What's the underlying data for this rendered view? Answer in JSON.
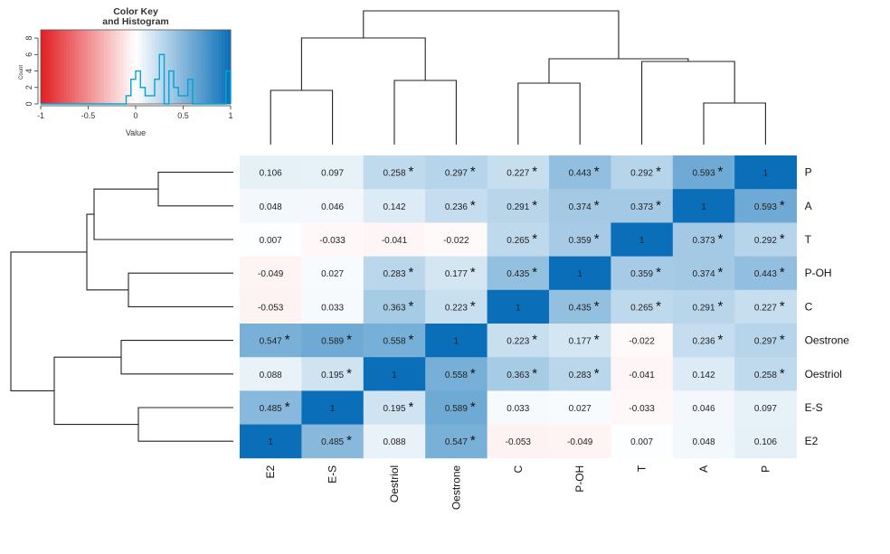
{
  "chart_data": {
    "type": "heatmap",
    "rows_top_to_bottom": [
      "P",
      "A",
      "T",
      "P-OH",
      "C",
      "Oestrone",
      "Oestriol",
      "E-S",
      "E2"
    ],
    "columns_left_to_right": [
      "E2",
      "E-S",
      "Oestriol",
      "Oestrone",
      "C",
      "P-OH",
      "T",
      "A",
      "P"
    ],
    "values": [
      [
        0.106,
        0.097,
        0.258,
        0.297,
        0.227,
        0.443,
        0.292,
        0.593,
        1
      ],
      [
        0.048,
        0.046,
        0.142,
        0.236,
        0.291,
        0.374,
        0.373,
        1,
        0.593
      ],
      [
        0.007,
        -0.033,
        -0.041,
        -0.022,
        0.265,
        0.359,
        1,
        0.373,
        0.292
      ],
      [
        -0.049,
        0.027,
        0.283,
        0.177,
        0.435,
        1,
        0.359,
        0.374,
        0.443
      ],
      [
        -0.053,
        0.033,
        0.363,
        0.223,
        1,
        0.435,
        0.265,
        0.291,
        0.227
      ],
      [
        0.547,
        0.589,
        0.558,
        1,
        0.223,
        0.177,
        -0.022,
        0.236,
        0.297
      ],
      [
        0.088,
        0.195,
        1,
        0.558,
        0.363,
        0.283,
        -0.041,
        0.142,
        0.258
      ],
      [
        0.485,
        1,
        0.195,
        0.589,
        0.033,
        0.027,
        -0.033,
        0.046,
        0.097
      ],
      [
        1,
        0.485,
        0.088,
        0.547,
        -0.053,
        -0.049,
        0.007,
        0.048,
        0.106
      ]
    ],
    "value_labels": [
      [
        "0.106",
        "0.097",
        "0.258",
        "0.297",
        "0.227",
        "0.443",
        "0.292",
        "0.593",
        "1"
      ],
      [
        "0.048",
        "0.046",
        "0.142",
        "0.236",
        "0.291",
        "0.374",
        "0.373",
        "1",
        "0.593"
      ],
      [
        "0.007",
        "-0.033",
        "-0.041",
        "-0.022",
        "0.265",
        "0.359",
        "1",
        "0.373",
        "0.292"
      ],
      [
        "-0.049",
        "0.027",
        "0.283",
        "0.177",
        "0.435",
        "1",
        "0.359",
        "0.374",
        "0.443"
      ],
      [
        "-0.053",
        "0.033",
        "0.363",
        "0.223",
        "1",
        "0.435",
        "0.265",
        "0.291",
        "0.227"
      ],
      [
        "0.547",
        "0.589",
        "0.558",
        "1",
        "0.223",
        "0.177",
        "-0.022",
        "0.236",
        "0.297"
      ],
      [
        "0.088",
        "0.195",
        "1",
        "0.558",
        "0.363",
        "0.283",
        "-0.041",
        "0.142",
        "0.258"
      ],
      [
        "0.485",
        "1",
        "0.195",
        "0.589",
        "0.033",
        "0.027",
        "-0.033",
        "0.046",
        "0.097"
      ],
      [
        "1",
        "0.485",
        "0.088",
        "0.547",
        "-0.053",
        "-0.049",
        "0.007",
        "0.048",
        "0.106"
      ]
    ],
    "significant": [
      [
        false,
        false,
        true,
        true,
        true,
        true,
        true,
        true,
        false
      ],
      [
        false,
        false,
        false,
        true,
        true,
        true,
        true,
        false,
        true
      ],
      [
        false,
        false,
        false,
        false,
        true,
        true,
        false,
        true,
        true
      ],
      [
        false,
        false,
        true,
        true,
        true,
        false,
        true,
        true,
        true
      ],
      [
        false,
        false,
        true,
        true,
        false,
        true,
        true,
        true,
        true
      ],
      [
        true,
        true,
        true,
        false,
        true,
        true,
        false,
        true,
        true
      ],
      [
        false,
        true,
        false,
        true,
        true,
        true,
        false,
        false,
        true
      ],
      [
        true,
        false,
        true,
        true,
        false,
        false,
        false,
        false,
        false
      ],
      [
        false,
        true,
        false,
        true,
        false,
        false,
        false,
        false,
        false
      ]
    ],
    "significance_marker": "*",
    "color_scale": {
      "range": [
        -1,
        1
      ],
      "low": "#e21e22",
      "mid": "#ffffff",
      "high": "#0a6fb8"
    },
    "color_key": {
      "title_line1": "Color Key",
      "title_line2": "and Histogram",
      "xlabel": "Value",
      "ylabel": "Count",
      "x_ticks": [
        "-1",
        "-0.5",
        "0",
        "0.5",
        "1"
      ],
      "y_ticks": [
        "0",
        "2",
        "4",
        "6",
        "8"
      ],
      "histogram_color": "#00a2d8"
    }
  }
}
